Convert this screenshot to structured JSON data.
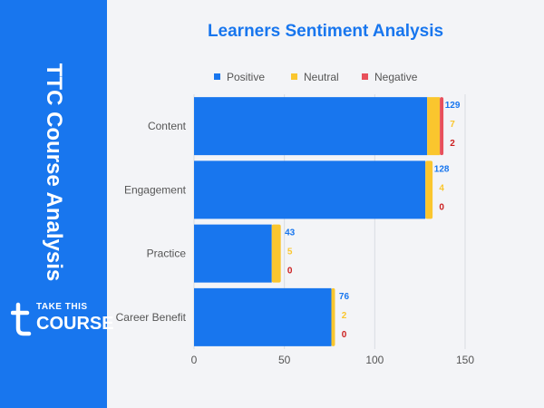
{
  "sidebar": {
    "title": "TTC Course Analysis",
    "logo": {
      "line1": "TAKE THIS",
      "line2": "COURSE",
      "mark": "t"
    }
  },
  "colors": {
    "sidebar": "#1876ee",
    "positive": "#1876ee",
    "neutral": "#fac62e",
    "negative": "#e8505b",
    "negative_label": "#cc1f1f",
    "title": "#1876ee"
  },
  "chart_data": {
    "type": "bar",
    "orientation": "horizontal",
    "stacked": true,
    "title": "Learners Sentiment Analysis",
    "categories": [
      "Content",
      "Engagement",
      "Practice",
      "Career Benefit"
    ],
    "series": [
      {
        "name": "Positive",
        "values": [
          129,
          128,
          43,
          76
        ]
      },
      {
        "name": "Neutral",
        "values": [
          7,
          4,
          5,
          2
        ]
      },
      {
        "name": "Negative",
        "values": [
          2,
          0,
          0,
          0
        ]
      }
    ],
    "xlim": [
      0,
      150
    ],
    "xticks": [
      0,
      50,
      100,
      150
    ],
    "xlabel": "",
    "ylabel": "",
    "grid": true,
    "legend": "top"
  }
}
